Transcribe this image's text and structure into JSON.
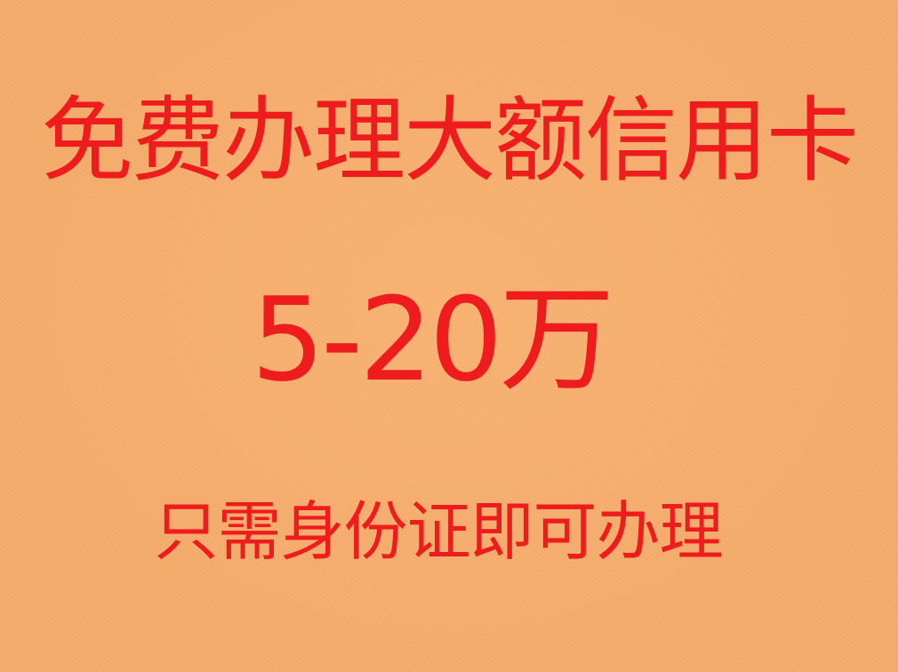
{
  "poster": {
    "headline": "免费办理大额信用卡",
    "amount": "5-20万",
    "note": "只需身份证即可办理",
    "background_color": "#f6ac6c",
    "text_color": "#ee1c1c"
  }
}
